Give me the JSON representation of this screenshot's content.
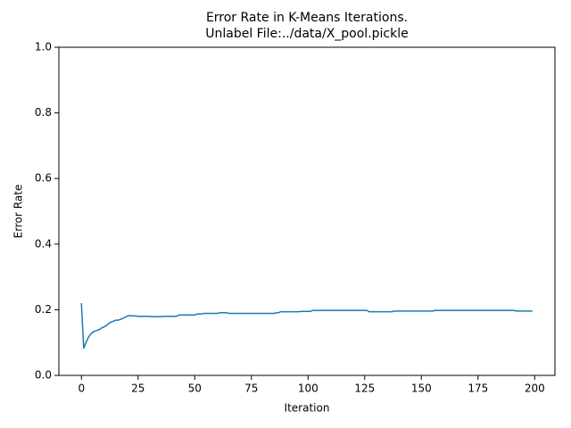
{
  "chart_data": {
    "type": "line",
    "title": "Error Rate in K-Means Iterations.",
    "subtitle": "Unlabel File:../data/X_pool.pickle",
    "x_label": "Iteration",
    "y_label": "Error Rate",
    "color": "#1f77b4",
    "xlim": [
      -9.95,
      208.95
    ],
    "ylim": [
      0,
      1
    ],
    "xticks": [
      0,
      25,
      50,
      75,
      100,
      125,
      150,
      175,
      200
    ],
    "yticks": [
      {
        "value": 0,
        "label": "0.0"
      },
      0.2,
      0.4,
      0.6,
      0.8,
      {
        "value": 1,
        "label": "1.0"
      }
    ],
    "x": [
      0,
      1,
      2,
      3,
      4,
      5,
      6,
      7,
      8,
      9,
      10,
      11,
      12,
      13,
      14,
      15,
      16,
      17,
      18,
      19,
      20,
      21,
      22,
      23,
      24,
      25,
      26,
      27,
      28,
      29,
      30,
      31,
      32,
      33,
      34,
      35,
      36,
      37,
      38,
      39,
      40,
      41,
      42,
      43,
      44,
      45,
      46,
      47,
      48,
      49,
      50,
      51,
      52,
      53,
      54,
      55,
      56,
      57,
      58,
      59,
      60,
      61,
      62,
      63,
      64,
      65,
      66,
      67,
      68,
      69,
      70,
      71,
      72,
      73,
      74,
      75,
      76,
      77,
      78,
      79,
      80,
      81,
      82,
      83,
      84,
      85,
      86,
      87,
      88,
      89,
      90,
      91,
      92,
      93,
      94,
      95,
      96,
      97,
      98,
      99,
      100,
      101,
      102,
      103,
      104,
      105,
      106,
      107,
      108,
      109,
      110,
      111,
      112,
      113,
      114,
      115,
      116,
      117,
      118,
      119,
      120,
      121,
      122,
      123,
      124,
      125,
      126,
      127,
      128,
      129,
      130,
      131,
      132,
      133,
      134,
      135,
      136,
      137,
      138,
      139,
      140,
      141,
      142,
      143,
      144,
      145,
      146,
      147,
      148,
      149,
      150,
      151,
      152,
      153,
      154,
      155,
      156,
      157,
      158,
      159,
      160,
      161,
      162,
      163,
      164,
      165,
      166,
      167,
      168,
      169,
      170,
      171,
      172,
      173,
      174,
      175,
      176,
      177,
      178,
      179,
      180,
      181,
      182,
      183,
      184,
      185,
      186,
      187,
      188,
      189,
      190,
      191,
      192,
      193,
      194,
      195,
      196,
      197,
      198,
      199
    ],
    "values": [
      0.22,
      0.083,
      0.1,
      0.115,
      0.125,
      0.132,
      0.135,
      0.137,
      0.14,
      0.145,
      0.148,
      0.152,
      0.158,
      0.162,
      0.165,
      0.168,
      0.168,
      0.17,
      0.173,
      0.176,
      0.18,
      0.182,
      0.182,
      0.181,
      0.181,
      0.18,
      0.18,
      0.18,
      0.18,
      0.18,
      0.18,
      0.179,
      0.179,
      0.179,
      0.179,
      0.179,
      0.18,
      0.18,
      0.18,
      0.18,
      0.18,
      0.18,
      0.18,
      0.184,
      0.184,
      0.184,
      0.184,
      0.184,
      0.184,
      0.184,
      0.184,
      0.187,
      0.187,
      0.187,
      0.189,
      0.189,
      0.189,
      0.189,
      0.189,
      0.189,
      0.189,
      0.191,
      0.191,
      0.191,
      0.191,
      0.189,
      0.189,
      0.189,
      0.189,
      0.189,
      0.189,
      0.189,
      0.189,
      0.189,
      0.189,
      0.189,
      0.189,
      0.189,
      0.189,
      0.189,
      0.189,
      0.189,
      0.189,
      0.189,
      0.189,
      0.189,
      0.191,
      0.191,
      0.194,
      0.194,
      0.194,
      0.194,
      0.194,
      0.194,
      0.194,
      0.194,
      0.194,
      0.195,
      0.195,
      0.195,
      0.195,
      0.195,
      0.198,
      0.198,
      0.198,
      0.198,
      0.198,
      0.198,
      0.198,
      0.198,
      0.198,
      0.198,
      0.198,
      0.198,
      0.198,
      0.198,
      0.198,
      0.198,
      0.198,
      0.198,
      0.198,
      0.198,
      0.198,
      0.198,
      0.198,
      0.198,
      0.198,
      0.194,
      0.194,
      0.194,
      0.194,
      0.194,
      0.194,
      0.194,
      0.194,
      0.194,
      0.194,
      0.194,
      0.196,
      0.196,
      0.196,
      0.196,
      0.196,
      0.196,
      0.196,
      0.196,
      0.196,
      0.196,
      0.196,
      0.196,
      0.196,
      0.196,
      0.196,
      0.196,
      0.196,
      0.196,
      0.198,
      0.198,
      0.198,
      0.198,
      0.198,
      0.198,
      0.198,
      0.198,
      0.198,
      0.198,
      0.198,
      0.198,
      0.198,
      0.198,
      0.198,
      0.198,
      0.198,
      0.198,
      0.198,
      0.198,
      0.198,
      0.198,
      0.198,
      0.198,
      0.198,
      0.198,
      0.198,
      0.198,
      0.198,
      0.198,
      0.198,
      0.198,
      0.198,
      0.198,
      0.198,
      0.198,
      0.196,
      0.196,
      0.196,
      0.196,
      0.196,
      0.196,
      0.196,
      0.196
    ]
  }
}
